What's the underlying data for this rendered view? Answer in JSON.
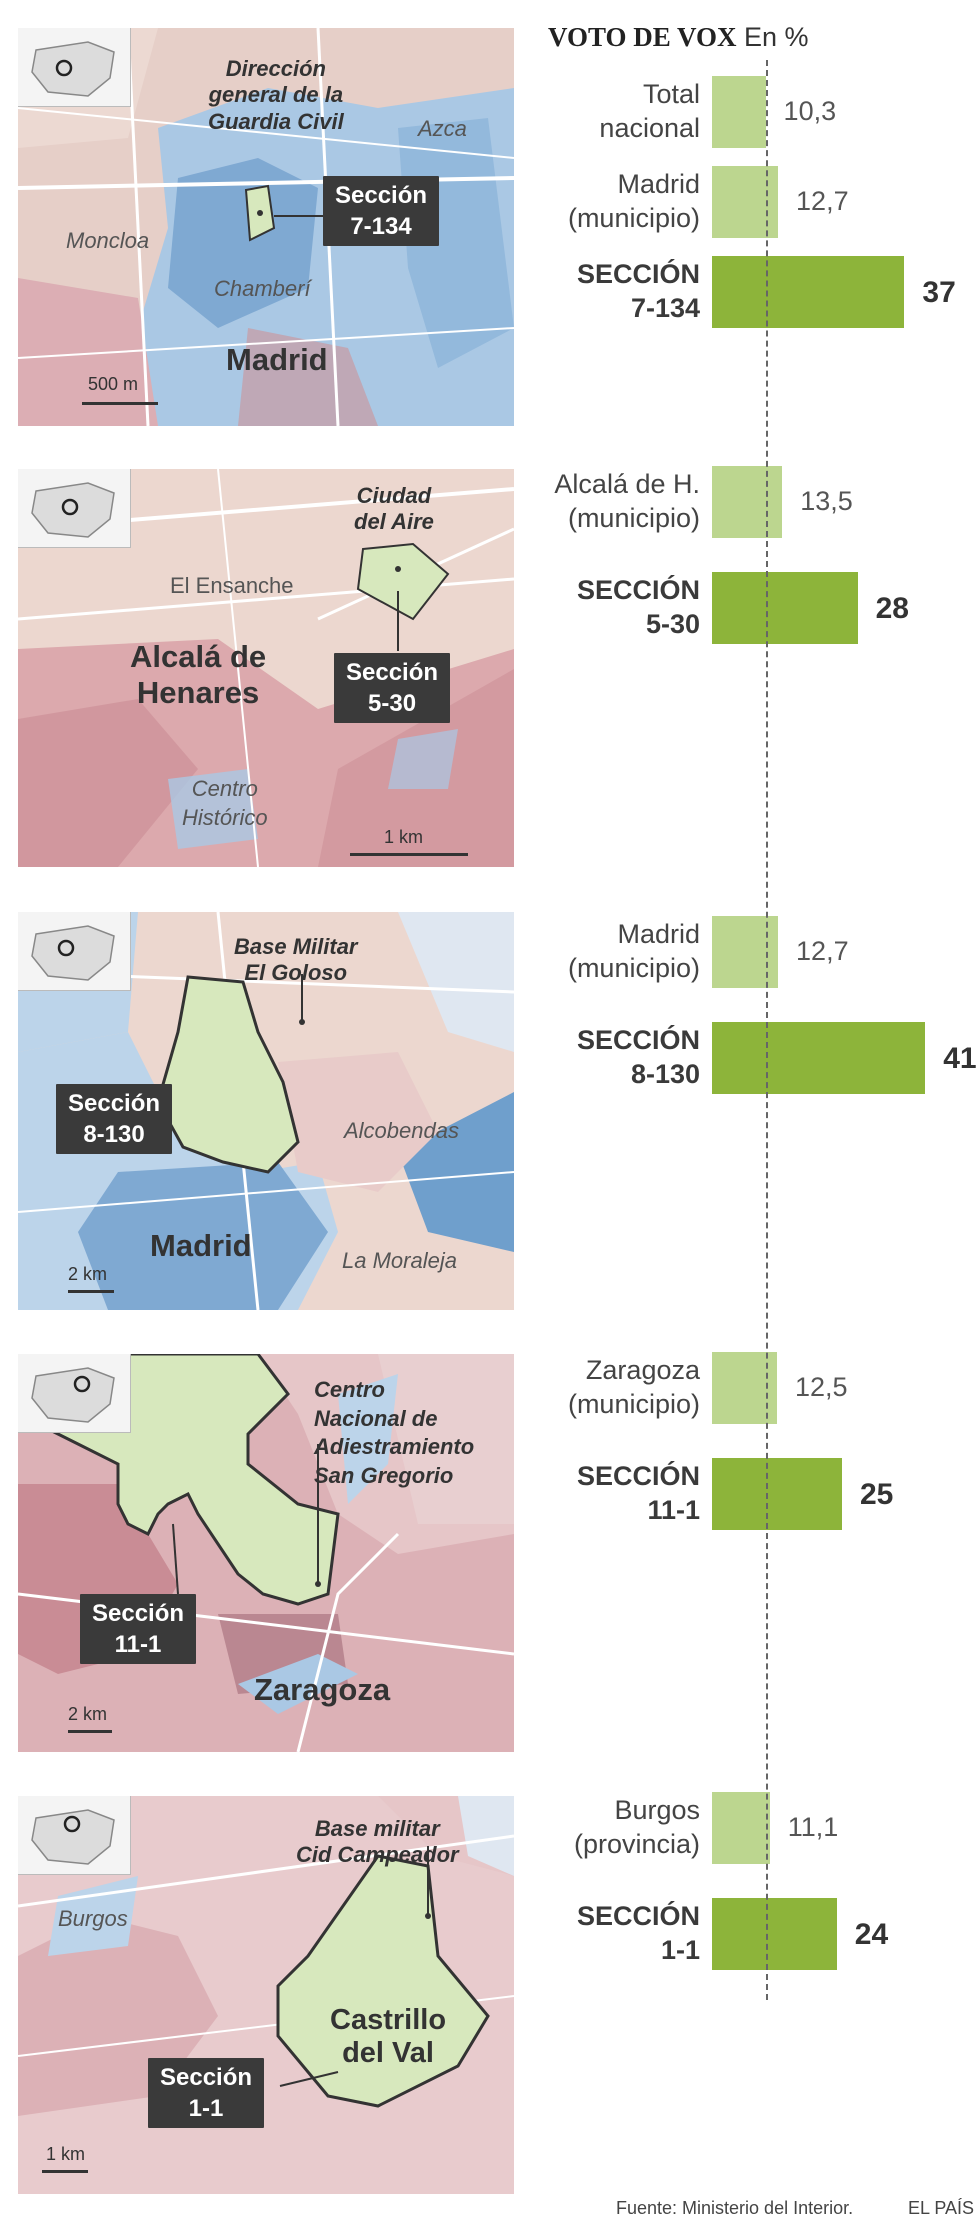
{
  "header": {
    "title_bold": "VOTO DE VOX",
    "title_unit": "En %"
  },
  "chart_data": {
    "type": "bar",
    "title": "VOTO DE VOX En %",
    "xlim": [
      0,
      41
    ],
    "reference_line": {
      "name": "Total nacional",
      "value": 10.3
    },
    "groups": [
      {
        "rows": [
          {
            "label": "Total\nnacional",
            "value": 10.3,
            "value_label": "10,3",
            "highlight": false
          },
          {
            "label": "Madrid\n(municipio)",
            "value": 12.7,
            "value_label": "12,7",
            "highlight": false
          },
          {
            "label": "SECCIÓN\n7-134",
            "value": 37,
            "value_label": "37",
            "highlight": true
          }
        ]
      },
      {
        "rows": [
          {
            "label": "Alcalá de H.\n(municipio)",
            "value": 13.5,
            "value_label": "13,5",
            "highlight": false
          },
          {
            "label": "SECCIÓN\n5-30",
            "value": 28,
            "value_label": "28",
            "highlight": true
          }
        ]
      },
      {
        "rows": [
          {
            "label": "Madrid\n(municipio)",
            "value": 12.7,
            "value_label": "12,7",
            "highlight": false
          },
          {
            "label": "SECCIÓN\n8-130",
            "value": 41,
            "value_label": "41",
            "highlight": true
          }
        ]
      },
      {
        "rows": [
          {
            "label": "Zaragoza\n(municipio)",
            "value": 12.5,
            "value_label": "12,5",
            "highlight": false
          },
          {
            "label": "SECCIÓN\n11-1",
            "value": 25,
            "value_label": "25",
            "highlight": true
          }
        ]
      },
      {
        "rows": [
          {
            "label": "Burgos\n(provincia)",
            "value": 11.1,
            "value_label": "11,1",
            "highlight": false
          },
          {
            "label": "SECCIÓN\n1-1",
            "value": 24,
            "value_label": "24",
            "highlight": true
          }
        ]
      }
    ]
  },
  "maps": [
    {
      "labels": [
        "Dirección\ngeneral de la\nGuardia Civil",
        "Azca",
        "Moncloa",
        "Chamberí"
      ],
      "city": "Madrid",
      "callout": "Sección\n7-134",
      "scale": "500 m"
    },
    {
      "labels": [
        "Ciudad\ndel Aire",
        "El Ensanche",
        "Centro\nHistórico"
      ],
      "city": "Alcalá de\nHenares",
      "callout": "Sección\n5-30",
      "scale": "1 km"
    },
    {
      "labels": [
        "Base Militar\nEl Goloso",
        "Alcobendas",
        "La Moraleja"
      ],
      "city": "Madrid",
      "callout": "Sección\n8-130",
      "scale": "2 km"
    },
    {
      "labels": [
        "Centro\nNacional de\nAdiestramiento\nSan Gregorio"
      ],
      "city": "Zaragoza",
      "callout": "Sección\n11-1",
      "scale": "2 km"
    },
    {
      "labels": [
        "Base militar\nCid Campeador",
        "Burgos"
      ],
      "city": "Castrillo\ndel Val",
      "callout": "Sección\n1-1",
      "scale": "1 km"
    }
  ],
  "footer": {
    "source": "Fuente: Ministerio del Interior.",
    "brand": "EL PAÍS"
  },
  "colors": {
    "bar_light": "#bcd68f",
    "bar_dark": "#8db43a",
    "section_fill": "#d7e8bd",
    "callout_bg": "#3a3a3a",
    "vox_low": "#ead6cf",
    "vox_high": "#c9a0a6",
    "pp_blue": "#8fb7d9"
  }
}
